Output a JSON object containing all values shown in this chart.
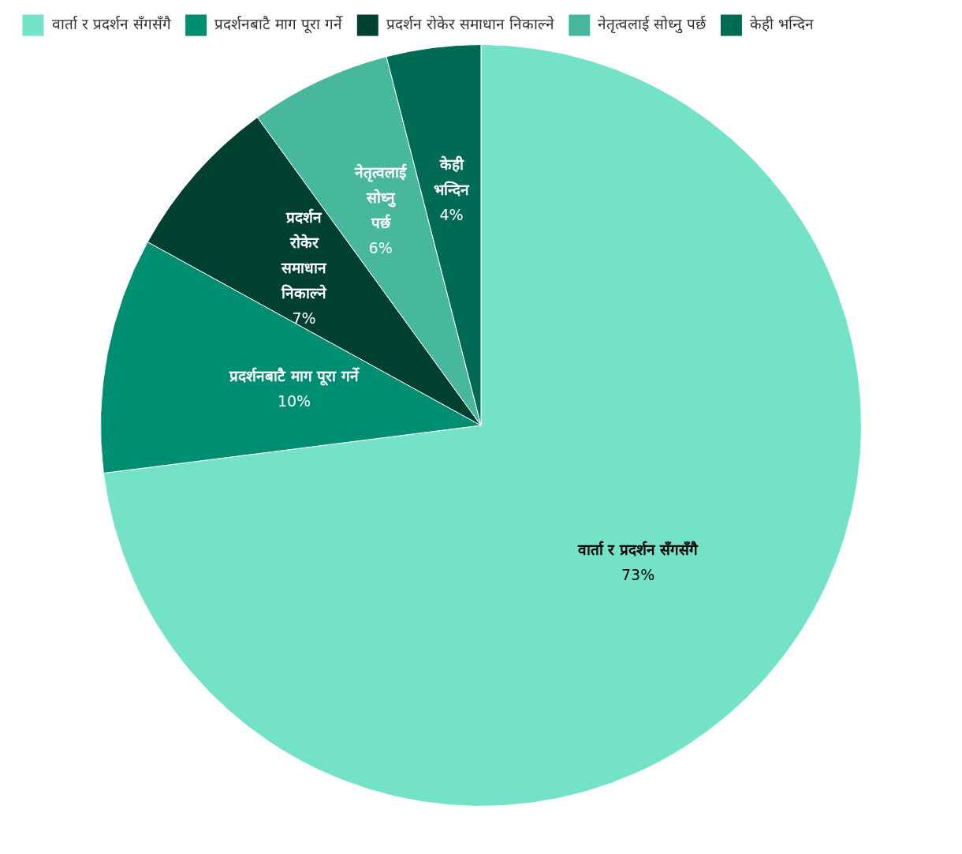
{
  "chart_data": {
    "type": "pie",
    "categories": [
      "वार्ता र प्रदर्शन सँगसँगै",
      "प्रदर्शनबाटै माग पूरा गर्ने",
      "प्रदर्शन रोकेर समाधान निकाल्ने",
      "नेतृत्वलाई सोध्नु पर्छ",
      "केही भन्दिन"
    ],
    "values": [
      73,
      10,
      7,
      6,
      4
    ],
    "colors": [
      "#73e2c6",
      "#008e72",
      "#004030",
      "#47b89d",
      "#006b55"
    ],
    "value_labels": [
      "73%",
      "10%",
      "7%",
      "6%",
      "4%"
    ],
    "legend": "top"
  }
}
